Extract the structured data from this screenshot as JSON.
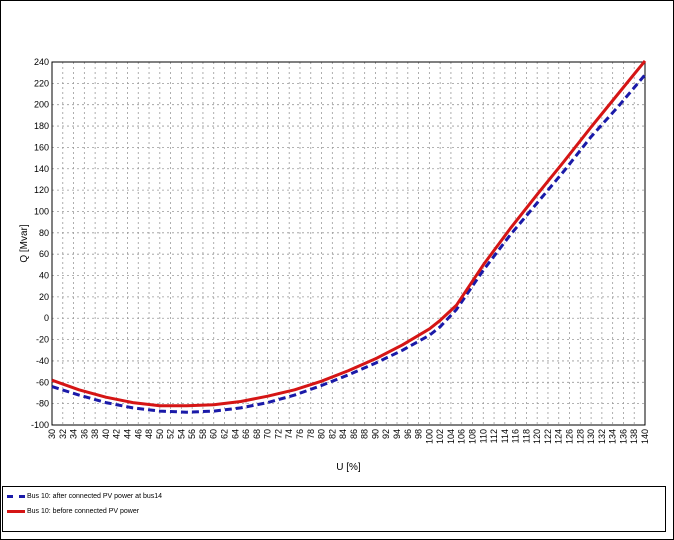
{
  "chart_data": {
    "type": "line",
    "xlabel": "U [%]",
    "ylabel": "Q [Mvar]",
    "xlim": [
      30,
      140
    ],
    "ylim": [
      -100,
      240
    ],
    "x_ticks": [
      30,
      32,
      34,
      36,
      38,
      40,
      42,
      44,
      46,
      48,
      50,
      52,
      54,
      56,
      58,
      60,
      62,
      64,
      66,
      68,
      70,
      72,
      74,
      76,
      78,
      80,
      82,
      84,
      86,
      88,
      90,
      92,
      94,
      96,
      98,
      100,
      102,
      104,
      106,
      108,
      110,
      112,
      114,
      116,
      118,
      120,
      122,
      124,
      126,
      128,
      130,
      132,
      134,
      136,
      138,
      140
    ],
    "y_ticks": [
      -100,
      -80,
      -60,
      -40,
      -20,
      0,
      20,
      40,
      60,
      80,
      100,
      120,
      140,
      160,
      180,
      200,
      220,
      240
    ],
    "grid": true,
    "legend_position": "bottom",
    "series": [
      {
        "name": "Bus 10: after connected PV power at bus14",
        "color": "#1a1aa8",
        "style": "dashed",
        "x": [
          30,
          35,
          40,
          45,
          50,
          55,
          60,
          65,
          70,
          75,
          80,
          85,
          90,
          95,
          100,
          102,
          105,
          110,
          115,
          120,
          125,
          130,
          135,
          140
        ],
        "y": [
          -64,
          -72,
          -79,
          -84,
          -87,
          -88,
          -87,
          -84,
          -79,
          -72,
          -63,
          -53,
          -42,
          -30,
          -16,
          -8,
          8,
          45,
          78,
          108,
          138,
          170,
          198,
          228
        ]
      },
      {
        "name": "Bus 10: before connected PV power",
        "color": "#d51515",
        "style": "solid",
        "x": [
          30,
          35,
          40,
          45,
          50,
          55,
          60,
          65,
          70,
          75,
          80,
          85,
          90,
          95,
          100,
          102,
          105,
          110,
          115,
          120,
          125,
          130,
          135,
          140
        ],
        "y": [
          -58,
          -67,
          -74,
          -79,
          -82,
          -82,
          -81,
          -78,
          -73,
          -67,
          -59,
          -49,
          -38,
          -25,
          -10,
          -2,
          12,
          50,
          84,
          116,
          147,
          179,
          210,
          241
        ]
      }
    ]
  }
}
